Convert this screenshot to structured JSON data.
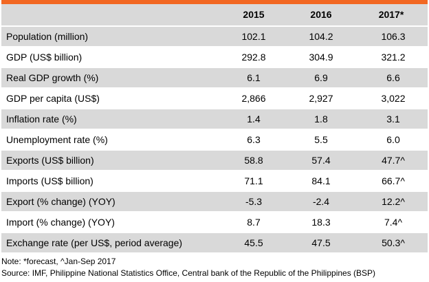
{
  "table": {
    "columns": [
      "",
      "2015",
      "2016",
      "2017*"
    ],
    "rows": [
      {
        "label": "Population (million)",
        "v2015": "102.1",
        "v2016": "104.2",
        "v2017": "106.3"
      },
      {
        "label": "GDP (US$ billion)",
        "v2015": "292.8",
        "v2016": "304.9",
        "v2017": "321.2"
      },
      {
        "label": "Real GDP growth (%)",
        "v2015": "6.1",
        "v2016": "6.9",
        "v2017": "6.6"
      },
      {
        "label": "GDP per capita (US$)",
        "v2015": "2,866",
        "v2016": "2,927",
        "v2017": "3,022"
      },
      {
        "label": "Inflation rate (%)",
        "v2015": "1.4",
        "v2016": "1.8",
        "v2017": "3.1"
      },
      {
        "label": "Unemployment rate (%)",
        "v2015": "6.3",
        "v2016": "5.5",
        "v2017": "6.0"
      },
      {
        "label": "Exports (US$ billion)",
        "v2015": "58.8",
        "v2016": "57.4",
        "v2017": "47.7^"
      },
      {
        "label": "Imports (US$ billion)",
        "v2015": "71.1",
        "v2016": "84.1",
        "v2017": "66.7^"
      },
      {
        "label": "Export (% change) (YOY)",
        "v2015": "-5.3",
        "v2016": "-2.4",
        "v2017": "12.2^"
      },
      {
        "label": "Import (% change) (YOY)",
        "v2015": "8.7",
        "v2016": "18.3",
        "v2017": "7.4^"
      },
      {
        "label": "Exchange rate (per US$, period average)",
        "v2015": "45.5",
        "v2016": "47.5",
        "v2017": "50.3^"
      }
    ]
  },
  "note": "Note: *forecast, ^Jan-Sep 2017",
  "source": "Source: IMF, Philippine National Statistics Office, Central bank of the Republic of the Philippines (BSP)",
  "colors": {
    "accent_rule": "#f26722",
    "shaded_row": "#d9d9d9"
  }
}
